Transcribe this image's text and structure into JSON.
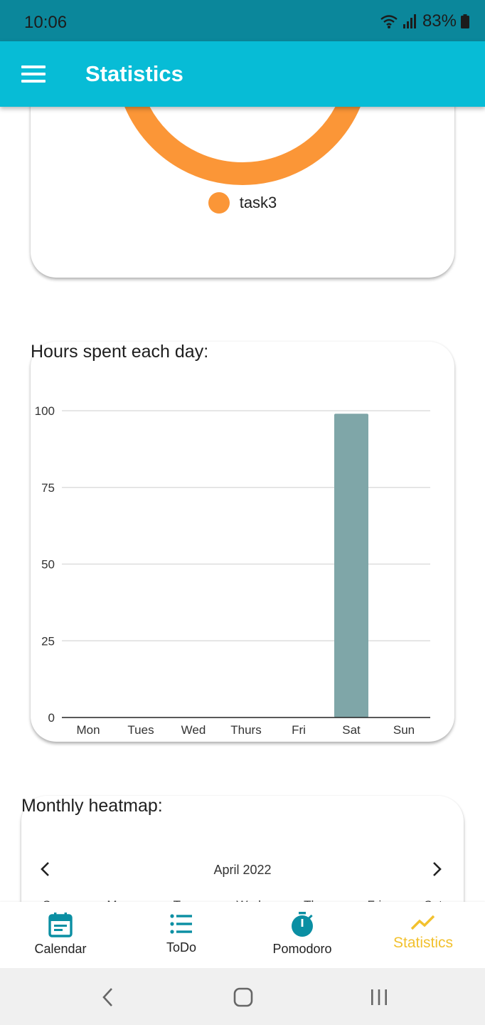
{
  "status_bar": {
    "time": "10:06",
    "battery": "83%"
  },
  "app_bar": {
    "title": "Statistics"
  },
  "donut": {
    "legend": [
      {
        "label": "task3",
        "color": "#fb9637"
      }
    ]
  },
  "bar_section": {
    "title": "Hours spent each day:"
  },
  "chart_data": {
    "type": "bar",
    "categories": [
      "Mon",
      "Tues",
      "Wed",
      "Thurs",
      "Fri",
      "Sat",
      "Sun"
    ],
    "values": [
      0,
      0,
      0,
      0,
      0,
      99,
      0
    ],
    "ylim": [
      0,
      100
    ],
    "yticks": [
      0,
      25,
      50,
      75,
      100
    ],
    "grid": true,
    "bar_color": "#7fa6a8"
  },
  "heatmap": {
    "title": "Monthly heatmap:",
    "month": "April 2022",
    "weekdays": [
      "Sun",
      "Mon",
      "Tue",
      "Wed",
      "Thu",
      "Fri",
      "Sat"
    ]
  },
  "bottom_nav": {
    "items": [
      {
        "label": "Calendar",
        "icon": "calendar-icon"
      },
      {
        "label": "ToDo",
        "icon": "list-icon"
      },
      {
        "label": "Pomodoro",
        "icon": "timer-icon"
      },
      {
        "label": "Statistics",
        "icon": "trending-up-icon"
      }
    ],
    "active": "Statistics",
    "accent_color": "#0a8fa3",
    "active_color": "#f2c12e"
  }
}
